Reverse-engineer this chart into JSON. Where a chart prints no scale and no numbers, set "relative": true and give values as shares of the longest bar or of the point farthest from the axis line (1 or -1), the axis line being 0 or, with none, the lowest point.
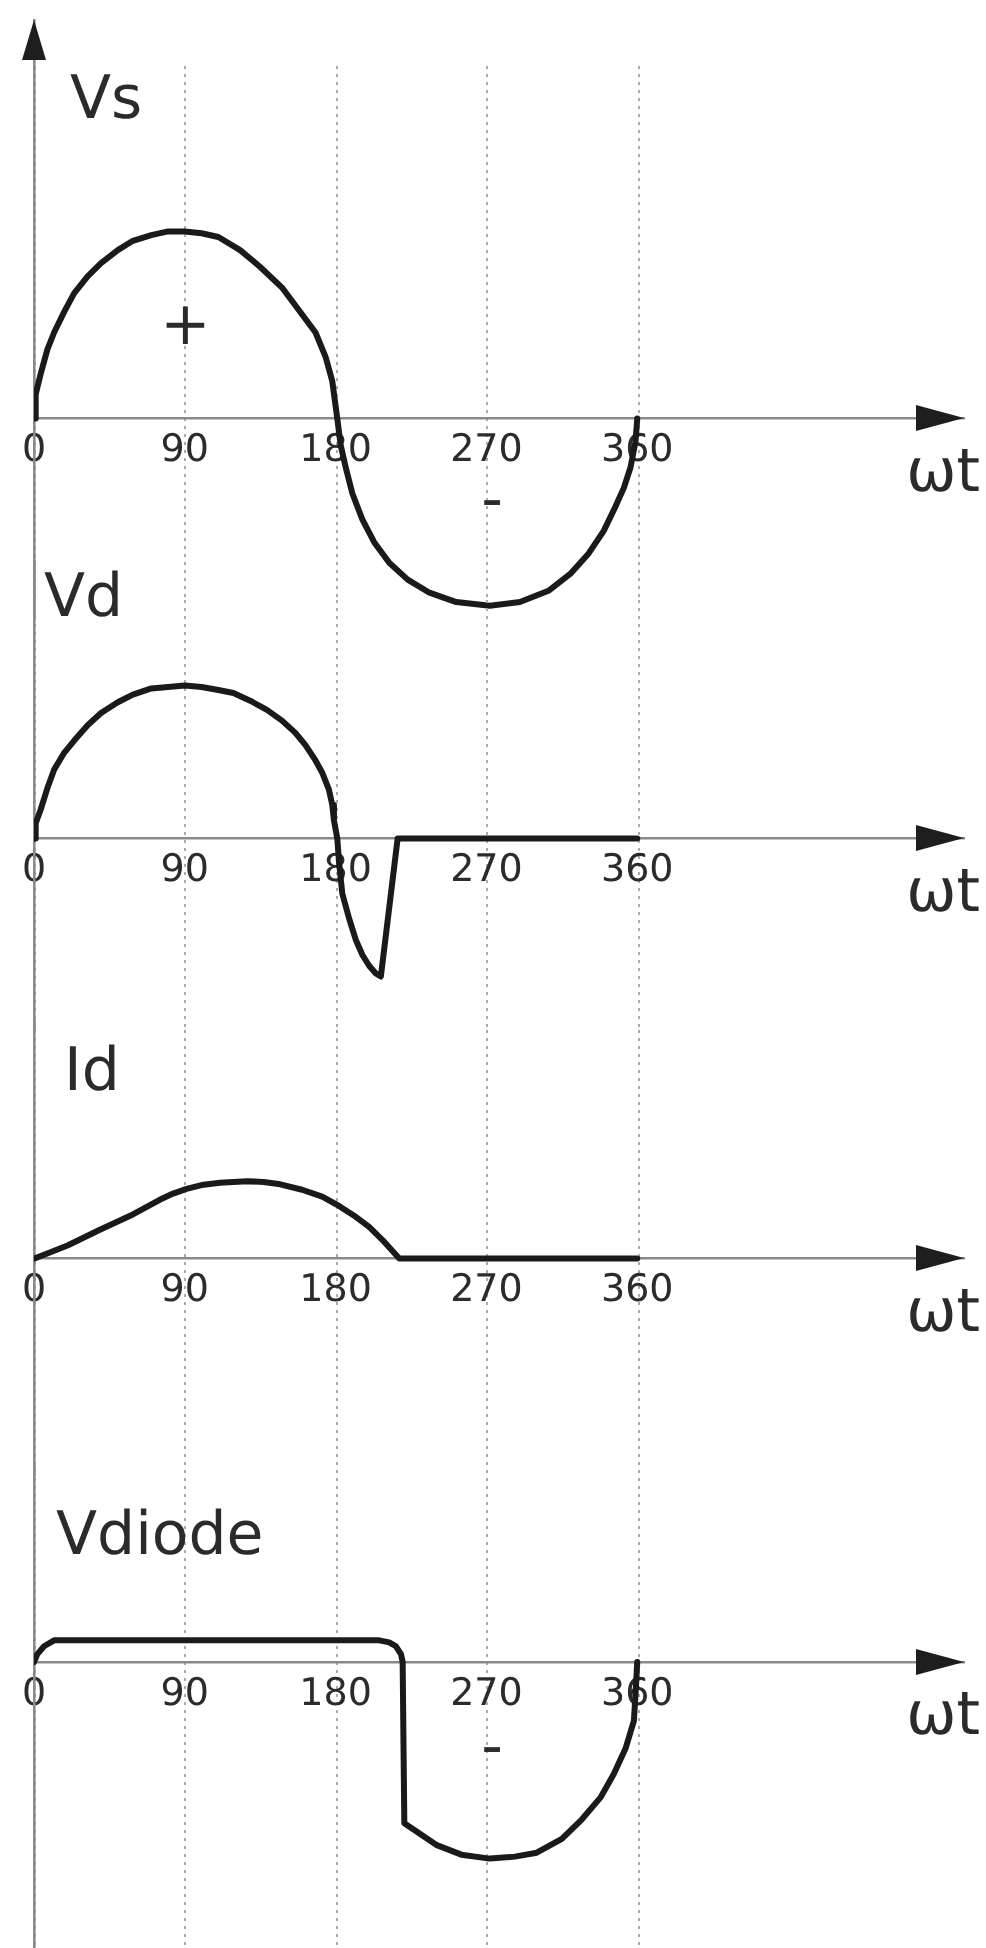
{
  "chart_data": [
    {
      "type": "line",
      "ylabel": "Vs",
      "xlabel": "ωt",
      "relative": true,
      "x": [
        0,
        1,
        4,
        8,
        12,
        18,
        24,
        32,
        40,
        50,
        59,
        70,
        80,
        90,
        100,
        110,
        123,
        135,
        148,
        158,
        168,
        174,
        178,
        181,
        183,
        186,
        190,
        196,
        203,
        212,
        223,
        236,
        252,
        272,
        290,
        307,
        320,
        331,
        340,
        347,
        352,
        356,
        359,
        360
      ],
      "series": [
        {
          "color": "#1a1a1a",
          "values": [
            0,
            0.13,
            0.24,
            0.37,
            0.46,
            0.57,
            0.67,
            0.76,
            0.83,
            0.9,
            0.95,
            0.98,
            1,
            1,
            0.99,
            0.97,
            0.9,
            0.81,
            0.7,
            0.58,
            0.46,
            0.33,
            0.2,
            0,
            -0.14,
            -0.26,
            -0.4,
            -0.54,
            -0.66,
            -0.77,
            -0.86,
            -0.93,
            -0.98,
            -1,
            -0.98,
            -0.92,
            -0.83,
            -0.72,
            -0.6,
            -0.47,
            -0.37,
            -0.26,
            -0.12,
            0
          ]
        }
      ],
      "xlim": [
        0,
        555
      ],
      "xticks": [
        0,
        90,
        180,
        270,
        360
      ],
      "grid": "x",
      "annotations": [
        "+",
        "-"
      ]
    },
    {
      "type": "line",
      "ylabel": "Vd",
      "xlabel": "ωt",
      "relative": true,
      "x": [
        0,
        1,
        4,
        8,
        12,
        18,
        24,
        32,
        40,
        50,
        59,
        70,
        80,
        90,
        100,
        110,
        119,
        129,
        139,
        148,
        156,
        162,
        168,
        172,
        176,
        178,
        179,
        181,
        182,
        184,
        188,
        192,
        196,
        200,
        204,
        207,
        217,
        360
      ],
      "series": [
        {
          "color": "#1a1a1a",
          "values": [
            0,
            0.1,
            0.19,
            0.33,
            0.45,
            0.56,
            0.64,
            0.74,
            0.82,
            0.89,
            0.94,
            0.98,
            0.99,
            1,
            0.99,
            0.97,
            0.95,
            0.9,
            0.84,
            0.77,
            0.69,
            0.61,
            0.51,
            0.43,
            0.32,
            0.22,
            0.12,
            0,
            -0.15,
            -0.36,
            -0.52,
            -0.66,
            -0.76,
            -0.83,
            -0.88,
            -0.9,
            0,
            0
          ]
        }
      ],
      "xlim": [
        0,
        555
      ],
      "xticks": [
        0,
        90,
        180,
        270,
        360
      ],
      "grid": "x"
    },
    {
      "type": "line",
      "ylabel": "Id",
      "xlabel": "ωt",
      "relative": true,
      "x": [
        0,
        20,
        39,
        59,
        75,
        83,
        91,
        100,
        111,
        127,
        137,
        147,
        160,
        172,
        182,
        192,
        200,
        208,
        213,
        218,
        360
      ],
      "series": [
        {
          "color": "#1a1a1a",
          "values": [
            0,
            0.17,
            0.37,
            0.57,
            0.76,
            0.84,
            0.9,
            0.95,
            0.98,
            1,
            0.99,
            0.96,
            0.89,
            0.8,
            0.68,
            0.54,
            0.41,
            0.24,
            0.12,
            0,
            0
          ]
        }
      ],
      "xlim": [
        0,
        555
      ],
      "xticks": [
        0,
        90,
        180,
        270,
        360
      ],
      "grid": "x"
    },
    {
      "type": "line",
      "ylabel": "Vdiode",
      "xlabel": "ωt",
      "relative": true,
      "x": [
        0,
        2,
        6,
        12,
        206,
        212,
        216,
        219,
        220,
        221,
        240,
        255,
        272,
        287,
        300,
        315,
        327,
        338,
        346,
        353,
        358,
        359,
        360
      ],
      "series": [
        {
          "color": "#1a1a1a",
          "values": [
            0,
            0.04,
            0.08,
            0.11,
            0.11,
            0.1,
            0.08,
            0.04,
            0,
            -0.82,
            -0.93,
            -0.98,
            -1,
            -0.99,
            -0.97,
            -0.9,
            -0.8,
            -0.69,
            -0.57,
            -0.44,
            -0.3,
            -0.16,
            0
          ]
        }
      ],
      "xlim": [
        0,
        555
      ],
      "xticks": [
        0,
        90,
        180,
        270,
        360
      ],
      "grid": "x",
      "annotations": [
        "-"
      ]
    }
  ]
}
